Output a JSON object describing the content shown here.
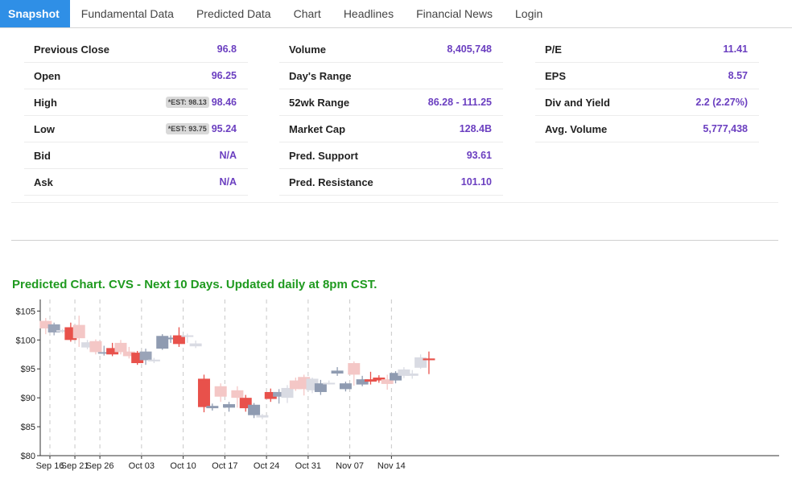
{
  "tabs": [
    {
      "label": "Snapshot",
      "active": true
    },
    {
      "label": "Fundamental Data",
      "active": false
    },
    {
      "label": "Predicted Data",
      "active": false
    },
    {
      "label": "Chart",
      "active": false
    },
    {
      "label": "Headlines",
      "active": false
    },
    {
      "label": "Financial News",
      "active": false
    },
    {
      "label": "Login",
      "active": false
    }
  ],
  "snapshot": {
    "col1": [
      {
        "label": "Previous Close",
        "value": "96.8"
      },
      {
        "label": "Open",
        "value": "96.25"
      },
      {
        "label": "High",
        "est": "*EST: 98.13",
        "value": "98.46"
      },
      {
        "label": "Low",
        "est": "*EST: 93.75",
        "value": "95.24"
      },
      {
        "label": "Bid",
        "value": "N/A"
      },
      {
        "label": "Ask",
        "value": "N/A"
      }
    ],
    "col2": [
      {
        "label": "Volume",
        "value": "8,405,748"
      },
      {
        "label": "Day's Range",
        "value": ""
      },
      {
        "label": "52wk Range",
        "value": "86.28 - 111.25"
      },
      {
        "label": "Market Cap",
        "value": "128.4B"
      },
      {
        "label": "Pred. Support",
        "value": "93.61"
      },
      {
        "label": "Pred. Resistance",
        "value": "101.10"
      }
    ],
    "col3": [
      {
        "label": "P/E",
        "value": "11.41"
      },
      {
        "label": "EPS",
        "value": "8.57"
      },
      {
        "label": "Div and Yield",
        "value": "2.2 (2.27%)"
      },
      {
        "label": "Avg. Volume",
        "value": "5,777,438"
      }
    ]
  },
  "chart_title": "Predicted Chart. CVS - Next 10 Days. Updated daily at 8pm CST.",
  "colors": {
    "accent": "#2f8fe6",
    "value": "#6b3fc0",
    "title": "#1f9a1f"
  },
  "chart_data": {
    "type": "candlestick",
    "ylim": [
      80,
      107
    ],
    "yticks": [
      {
        "v": 80,
        "label": "$80"
      },
      {
        "v": 85,
        "label": "$85"
      },
      {
        "v": 90,
        "label": "$90"
      },
      {
        "v": 95,
        "label": "$95"
      },
      {
        "v": 100,
        "label": "$100"
      },
      {
        "v": 105,
        "label": "$105"
      }
    ],
    "xlim": [
      -1.5,
      46
    ],
    "xticks": [
      {
        "i": 0,
        "label": "Sep 16"
      },
      {
        "i": 3,
        "label": "Sep 21"
      },
      {
        "i": 6,
        "label": "Sep 26"
      },
      {
        "i": 11,
        "label": "Oct 03"
      },
      {
        "i": 16,
        "label": "Oct 10"
      },
      {
        "i": 21,
        "label": "Oct 17"
      },
      {
        "i": 26,
        "label": "Oct 24"
      },
      {
        "i": 31,
        "label": "Oct 31"
      },
      {
        "i": 36,
        "label": "Nov 07"
      },
      {
        "i": 41,
        "label": "Nov 14"
      }
    ],
    "candles": [
      {
        "i": -0.5,
        "o": 102.0,
        "h": 103.8,
        "l": 101.0,
        "c": 103.3,
        "color": "#f4c7c6"
      },
      {
        "i": 0.5,
        "o": 102.7,
        "h": 103.0,
        "l": 100.8,
        "c": 101.3,
        "color": "#9aa4b8"
      },
      {
        "i": 1.5,
        "o": 101.7,
        "h": 101.9,
        "l": 101.2,
        "c": 101.4,
        "color": "#d9dbe3"
      },
      {
        "i": 2.5,
        "o": 102.2,
        "h": 103.0,
        "l": 99.7,
        "c": 100.0,
        "color": "#e8514b"
      },
      {
        "i": 3.5,
        "o": 100.3,
        "h": 104.2,
        "l": 98.8,
        "c": 102.6,
        "color": "#f4c7c6"
      },
      {
        "i": 4.5,
        "o": 99.6,
        "h": 100.0,
        "l": 98.4,
        "c": 98.7,
        "color": "#d9dbe3"
      },
      {
        "i": 5.5,
        "o": 99.8,
        "h": 100.1,
        "l": 97.5,
        "c": 97.9,
        "color": "#f4c7c6"
      },
      {
        "i": 6.5,
        "o": 97.9,
        "h": 99.0,
        "l": 97.3,
        "c": 97.7,
        "color": "#9aa4b8"
      },
      {
        "i": 7.5,
        "o": 98.6,
        "h": 99.5,
        "l": 97.2,
        "c": 97.5,
        "color": "#e8514b"
      },
      {
        "i": 8.5,
        "o": 97.9,
        "h": 100.0,
        "l": 97.5,
        "c": 99.5,
        "color": "#f4c7c6"
      },
      {
        "i": 9.5,
        "o": 98.0,
        "h": 98.8,
        "l": 96.8,
        "c": 97.2,
        "color": "#f4c7c6"
      },
      {
        "i": 10.5,
        "o": 97.8,
        "h": 98.1,
        "l": 95.7,
        "c": 96.0,
        "color": "#e8514b"
      },
      {
        "i": 11.5,
        "o": 96.5,
        "h": 98.5,
        "l": 95.7,
        "c": 98.0,
        "color": "#9aa4b8"
      },
      {
        "i": 12.5,
        "o": 96.3,
        "h": 96.9,
        "l": 96.0,
        "c": 96.6,
        "color": "#d9dbe3"
      },
      {
        "i": 13.5,
        "o": 98.5,
        "h": 101.0,
        "l": 98.3,
        "c": 100.7,
        "color": "#8f9bb1"
      },
      {
        "i": 14.5,
        "o": 100.2,
        "h": 100.8,
        "l": 99.5,
        "c": 100.4,
        "color": "#8f9bb1"
      },
      {
        "i": 15.5,
        "o": 100.8,
        "h": 102.2,
        "l": 98.8,
        "c": 99.3,
        "color": "#e8514b"
      },
      {
        "i": 16.5,
        "o": 100.6,
        "h": 101.1,
        "l": 99.5,
        "c": 100.8,
        "color": "#d9dbe3"
      },
      {
        "i": 17.5,
        "o": 99.4,
        "h": 99.9,
        "l": 98.6,
        "c": 98.9,
        "color": "#d9dbe3"
      },
      {
        "i": 18.5,
        "o": 93.3,
        "h": 94.0,
        "l": 87.5,
        "c": 88.4,
        "color": "#e8514b"
      },
      {
        "i": 19.5,
        "o": 88.2,
        "h": 89.0,
        "l": 87.8,
        "c": 88.6,
        "color": "#8f9bb1"
      },
      {
        "i": 20.5,
        "o": 92.0,
        "h": 92.5,
        "l": 89.3,
        "c": 90.2,
        "color": "#f4c7c6"
      },
      {
        "i": 21.5,
        "o": 88.3,
        "h": 89.3,
        "l": 87.6,
        "c": 88.9,
        "color": "#8f9bb1"
      },
      {
        "i": 22.5,
        "o": 91.3,
        "h": 92.0,
        "l": 88.3,
        "c": 90.0,
        "color": "#f4c7c6"
      },
      {
        "i": 23.5,
        "o": 90.0,
        "h": 90.5,
        "l": 87.6,
        "c": 88.2,
        "color": "#e8514b"
      },
      {
        "i": 24.5,
        "o": 87.0,
        "h": 89.1,
        "l": 86.5,
        "c": 88.8,
        "color": "#8f9bb1"
      },
      {
        "i": 25.5,
        "o": 86.6,
        "h": 87.2,
        "l": 86.3,
        "c": 87.0,
        "color": "#d9dbe3"
      },
      {
        "i": 26.5,
        "o": 91.0,
        "h": 91.6,
        "l": 89.3,
        "c": 89.8,
        "color": "#e8514b"
      },
      {
        "i": 27.5,
        "o": 90.2,
        "h": 91.5,
        "l": 89.0,
        "c": 91.0,
        "color": "#9aa4b8"
      },
      {
        "i": 28.5,
        "o": 90.0,
        "h": 92.2,
        "l": 89.1,
        "c": 91.7,
        "color": "#d9dbe3"
      },
      {
        "i": 29.5,
        "o": 93.0,
        "h": 93.5,
        "l": 91.2,
        "c": 91.5,
        "color": "#f4c7c6"
      },
      {
        "i": 30.5,
        "o": 91.5,
        "h": 94.0,
        "l": 90.4,
        "c": 93.6,
        "color": "#f4c7c6"
      },
      {
        "i": 31.5,
        "o": 91.3,
        "h": 93.5,
        "l": 90.8,
        "c": 93.3,
        "color": "#d9dbe3"
      },
      {
        "i": 32.5,
        "o": 91.0,
        "h": 93.1,
        "l": 90.5,
        "c": 92.5,
        "color": "#8f9bb1"
      },
      {
        "i": 33.5,
        "o": 92.5,
        "h": 93.0,
        "l": 92.3,
        "c": 92.6,
        "color": "#d9dbe3"
      },
      {
        "i": 34.5,
        "o": 94.7,
        "h": 95.3,
        "l": 93.8,
        "c": 94.2,
        "color": "#8f9bb1"
      },
      {
        "i": 35.5,
        "o": 91.5,
        "h": 92.8,
        "l": 91.1,
        "c": 92.5,
        "color": "#8f9bb1"
      },
      {
        "i": 36.5,
        "o": 94.0,
        "h": 96.3,
        "l": 92.1,
        "c": 96.0,
        "color": "#f4c7c6"
      },
      {
        "i": 37.5,
        "o": 92.3,
        "h": 93.8,
        "l": 92.0,
        "c": 93.2,
        "color": "#8f9bb1"
      },
      {
        "i": 38.5,
        "o": 93.2,
        "h": 94.5,
        "l": 92.3,
        "c": 92.8,
        "color": "#e8514b"
      },
      {
        "i": 39.5,
        "o": 93.5,
        "h": 93.9,
        "l": 92.6,
        "c": 93.0,
        "color": "#e8514b"
      },
      {
        "i": 40.5,
        "o": 93.2,
        "h": 94.0,
        "l": 91.4,
        "c": 92.4,
        "color": "#f4c7c6"
      },
      {
        "i": 41.5,
        "o": 93.0,
        "h": 94.6,
        "l": 92.5,
        "c": 94.3,
        "color": "#8f9bb1"
      },
      {
        "i": 42.5,
        "o": 93.8,
        "h": 95.3,
        "l": 93.4,
        "c": 94.9,
        "color": "#d9dbe3"
      },
      {
        "i": 43.5,
        "o": 94.2,
        "h": 94.8,
        "l": 93.3,
        "c": 93.8,
        "color": "#d9dbe3"
      },
      {
        "i": 44.5,
        "o": 95.2,
        "h": 97.5,
        "l": 95.0,
        "c": 97.0,
        "color": "#d9dbe3"
      },
      {
        "i": 45.5,
        "o": 96.8,
        "h": 98.0,
        "l": 94.1,
        "c": 96.5,
        "color": "#e8514b"
      }
    ]
  }
}
